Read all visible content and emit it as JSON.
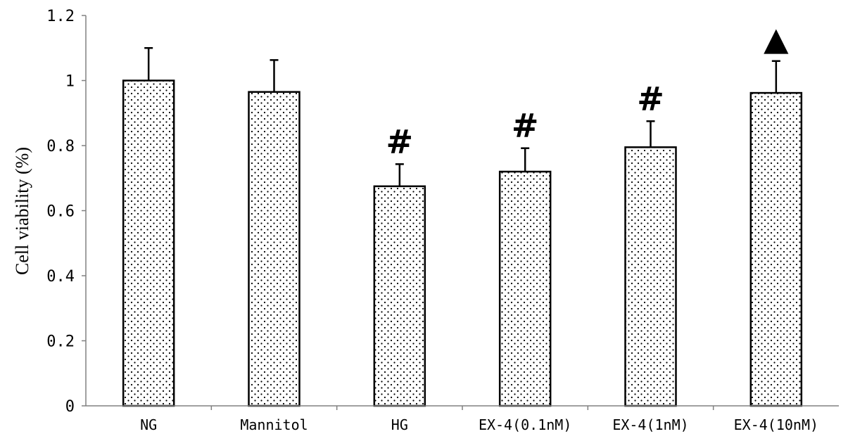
{
  "chart_data": {
    "type": "bar",
    "title": "",
    "xlabel": "",
    "ylabel": "Cell viability (%)",
    "ylim": [
      0,
      1.2
    ],
    "yticks": [
      "0",
      "0.2",
      "0.4",
      "0.6",
      "0.8",
      "1",
      "1.2"
    ],
    "categories": [
      "NG",
      "Mannitol",
      "HG",
      "EX-4(0.1nM)",
      "EX-4(1nM)",
      "EX-4(10nM)"
    ],
    "values": [
      1.0,
      0.965,
      0.675,
      0.72,
      0.795,
      0.962
    ],
    "errors": [
      0.1,
      0.098,
      0.068,
      0.072,
      0.08,
      0.098
    ],
    "annotations": [
      "",
      "",
      "#",
      "#",
      "#",
      "▲"
    ],
    "grid": false,
    "bar_fill": "dotted",
    "colors": {
      "bar_edge": "#000000",
      "bar_dot": "#000000",
      "axis": "#808080"
    }
  }
}
